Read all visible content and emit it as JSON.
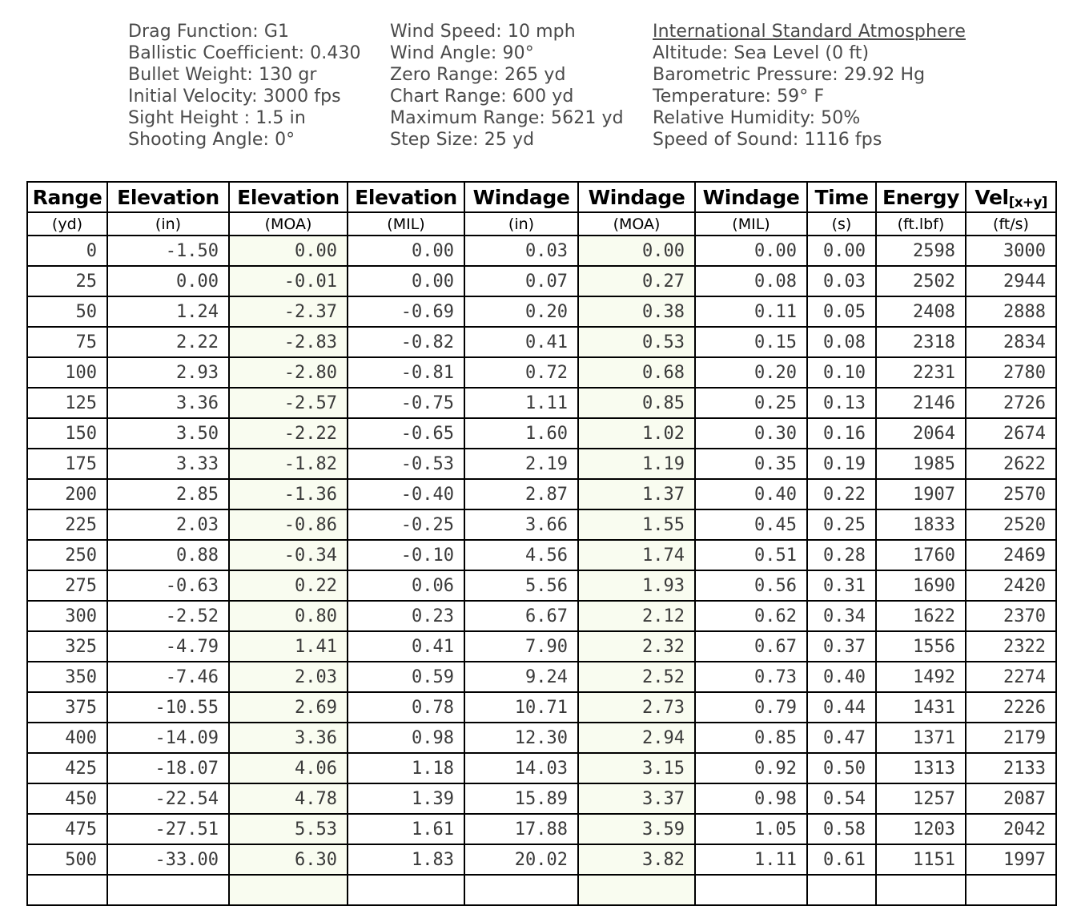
{
  "info": {
    "panel1": {
      "lines": [
        "Drag Function: G1",
        "Ballistic Coefficient: 0.430",
        "Bullet Weight: 130 gr",
        "Initial Velocity: 3000 fps",
        "Sight Height : 1.5 in",
        "Shooting Angle: 0°"
      ]
    },
    "panel2": {
      "lines": [
        "Wind Speed: 10 mph",
        "Wind Angle: 90°",
        "Zero Range: 265 yd",
        "Chart Range: 600 yd",
        "Maximum Range: 5621 yd",
        "Step Size: 25 yd"
      ]
    },
    "panel3": {
      "title": "International Standard Atmosphere",
      "lines": [
        "Altitude: Sea Level (0 ft)",
        "Barometric Pressure: 29.92 Hg",
        "Temperature: 59° F",
        "Relative Humidity: 50%",
        "Speed of Sound: 1116 fps"
      ]
    }
  },
  "table": {
    "columns": [
      {
        "label": "Range",
        "unit": "(yd)",
        "highlight": false
      },
      {
        "label": "Elevation",
        "unit": "(in)",
        "highlight": false
      },
      {
        "label": "Elevation",
        "unit": "(MOA)",
        "highlight": true
      },
      {
        "label": "Elevation",
        "unit": "(MIL)",
        "highlight": false
      },
      {
        "label": "Windage",
        "unit": "(in)",
        "highlight": false
      },
      {
        "label": "Windage",
        "unit": "(MOA)",
        "highlight": true
      },
      {
        "label": "Windage",
        "unit": "(MIL)",
        "highlight": false
      },
      {
        "label": "Time",
        "unit": "(s)",
        "highlight": false
      },
      {
        "label": "Energy",
        "unit": "(ft.lbf)",
        "highlight": false
      },
      {
        "label": "Vel",
        "sub": "[x+y]",
        "unit": "(ft/s)",
        "highlight": false
      }
    ],
    "rows": [
      [
        "0",
        "-1.50",
        "0.00",
        "0.00",
        "0.03",
        "0.00",
        "0.00",
        "0.00",
        "2598",
        "3000"
      ],
      [
        "25",
        "0.00",
        "-0.01",
        "0.00",
        "0.07",
        "0.27",
        "0.08",
        "0.03",
        "2502",
        "2944"
      ],
      [
        "50",
        "1.24",
        "-2.37",
        "-0.69",
        "0.20",
        "0.38",
        "0.11",
        "0.05",
        "2408",
        "2888"
      ],
      [
        "75",
        "2.22",
        "-2.83",
        "-0.82",
        "0.41",
        "0.53",
        "0.15",
        "0.08",
        "2318",
        "2834"
      ],
      [
        "100",
        "2.93",
        "-2.80",
        "-0.81",
        "0.72",
        "0.68",
        "0.20",
        "0.10",
        "2231",
        "2780"
      ],
      [
        "125",
        "3.36",
        "-2.57",
        "-0.75",
        "1.11",
        "0.85",
        "0.25",
        "0.13",
        "2146",
        "2726"
      ],
      [
        "150",
        "3.50",
        "-2.22",
        "-0.65",
        "1.60",
        "1.02",
        "0.30",
        "0.16",
        "2064",
        "2674"
      ],
      [
        "175",
        "3.33",
        "-1.82",
        "-0.53",
        "2.19",
        "1.19",
        "0.35",
        "0.19",
        "1985",
        "2622"
      ],
      [
        "200",
        "2.85",
        "-1.36",
        "-0.40",
        "2.87",
        "1.37",
        "0.40",
        "0.22",
        "1907",
        "2570"
      ],
      [
        "225",
        "2.03",
        "-0.86",
        "-0.25",
        "3.66",
        "1.55",
        "0.45",
        "0.25",
        "1833",
        "2520"
      ],
      [
        "250",
        "0.88",
        "-0.34",
        "-0.10",
        "4.56",
        "1.74",
        "0.51",
        "0.28",
        "1760",
        "2469"
      ],
      [
        "275",
        "-0.63",
        "0.22",
        "0.06",
        "5.56",
        "1.93",
        "0.56",
        "0.31",
        "1690",
        "2420"
      ],
      [
        "300",
        "-2.52",
        "0.80",
        "0.23",
        "6.67",
        "2.12",
        "0.62",
        "0.34",
        "1622",
        "2370"
      ],
      [
        "325",
        "-4.79",
        "1.41",
        "0.41",
        "7.90",
        "2.32",
        "0.67",
        "0.37",
        "1556",
        "2322"
      ],
      [
        "350",
        "-7.46",
        "2.03",
        "0.59",
        "9.24",
        "2.52",
        "0.73",
        "0.40",
        "1492",
        "2274"
      ],
      [
        "375",
        "-10.55",
        "2.69",
        "0.78",
        "10.71",
        "2.73",
        "0.79",
        "0.44",
        "1431",
        "2226"
      ],
      [
        "400",
        "-14.09",
        "3.36",
        "0.98",
        "12.30",
        "2.94",
        "0.85",
        "0.47",
        "1371",
        "2179"
      ],
      [
        "425",
        "-18.07",
        "4.06",
        "1.18",
        "14.03",
        "3.15",
        "0.92",
        "0.50",
        "1313",
        "2133"
      ],
      [
        "450",
        "-22.54",
        "4.78",
        "1.39",
        "15.89",
        "3.37",
        "0.98",
        "0.54",
        "1257",
        "2087"
      ],
      [
        "475",
        "-27.51",
        "5.53",
        "1.61",
        "17.88",
        "3.59",
        "1.05",
        "0.58",
        "1203",
        "2042"
      ],
      [
        "500",
        "-33.00",
        "6.30",
        "1.83",
        "20.02",
        "3.82",
        "1.11",
        "0.61",
        "1151",
        "1997"
      ]
    ]
  },
  "colors": {
    "highlight_column": "#f9fcf0",
    "border": "#000000",
    "data_text": "#3a3a3a",
    "info_text": "#4a4a4a"
  }
}
